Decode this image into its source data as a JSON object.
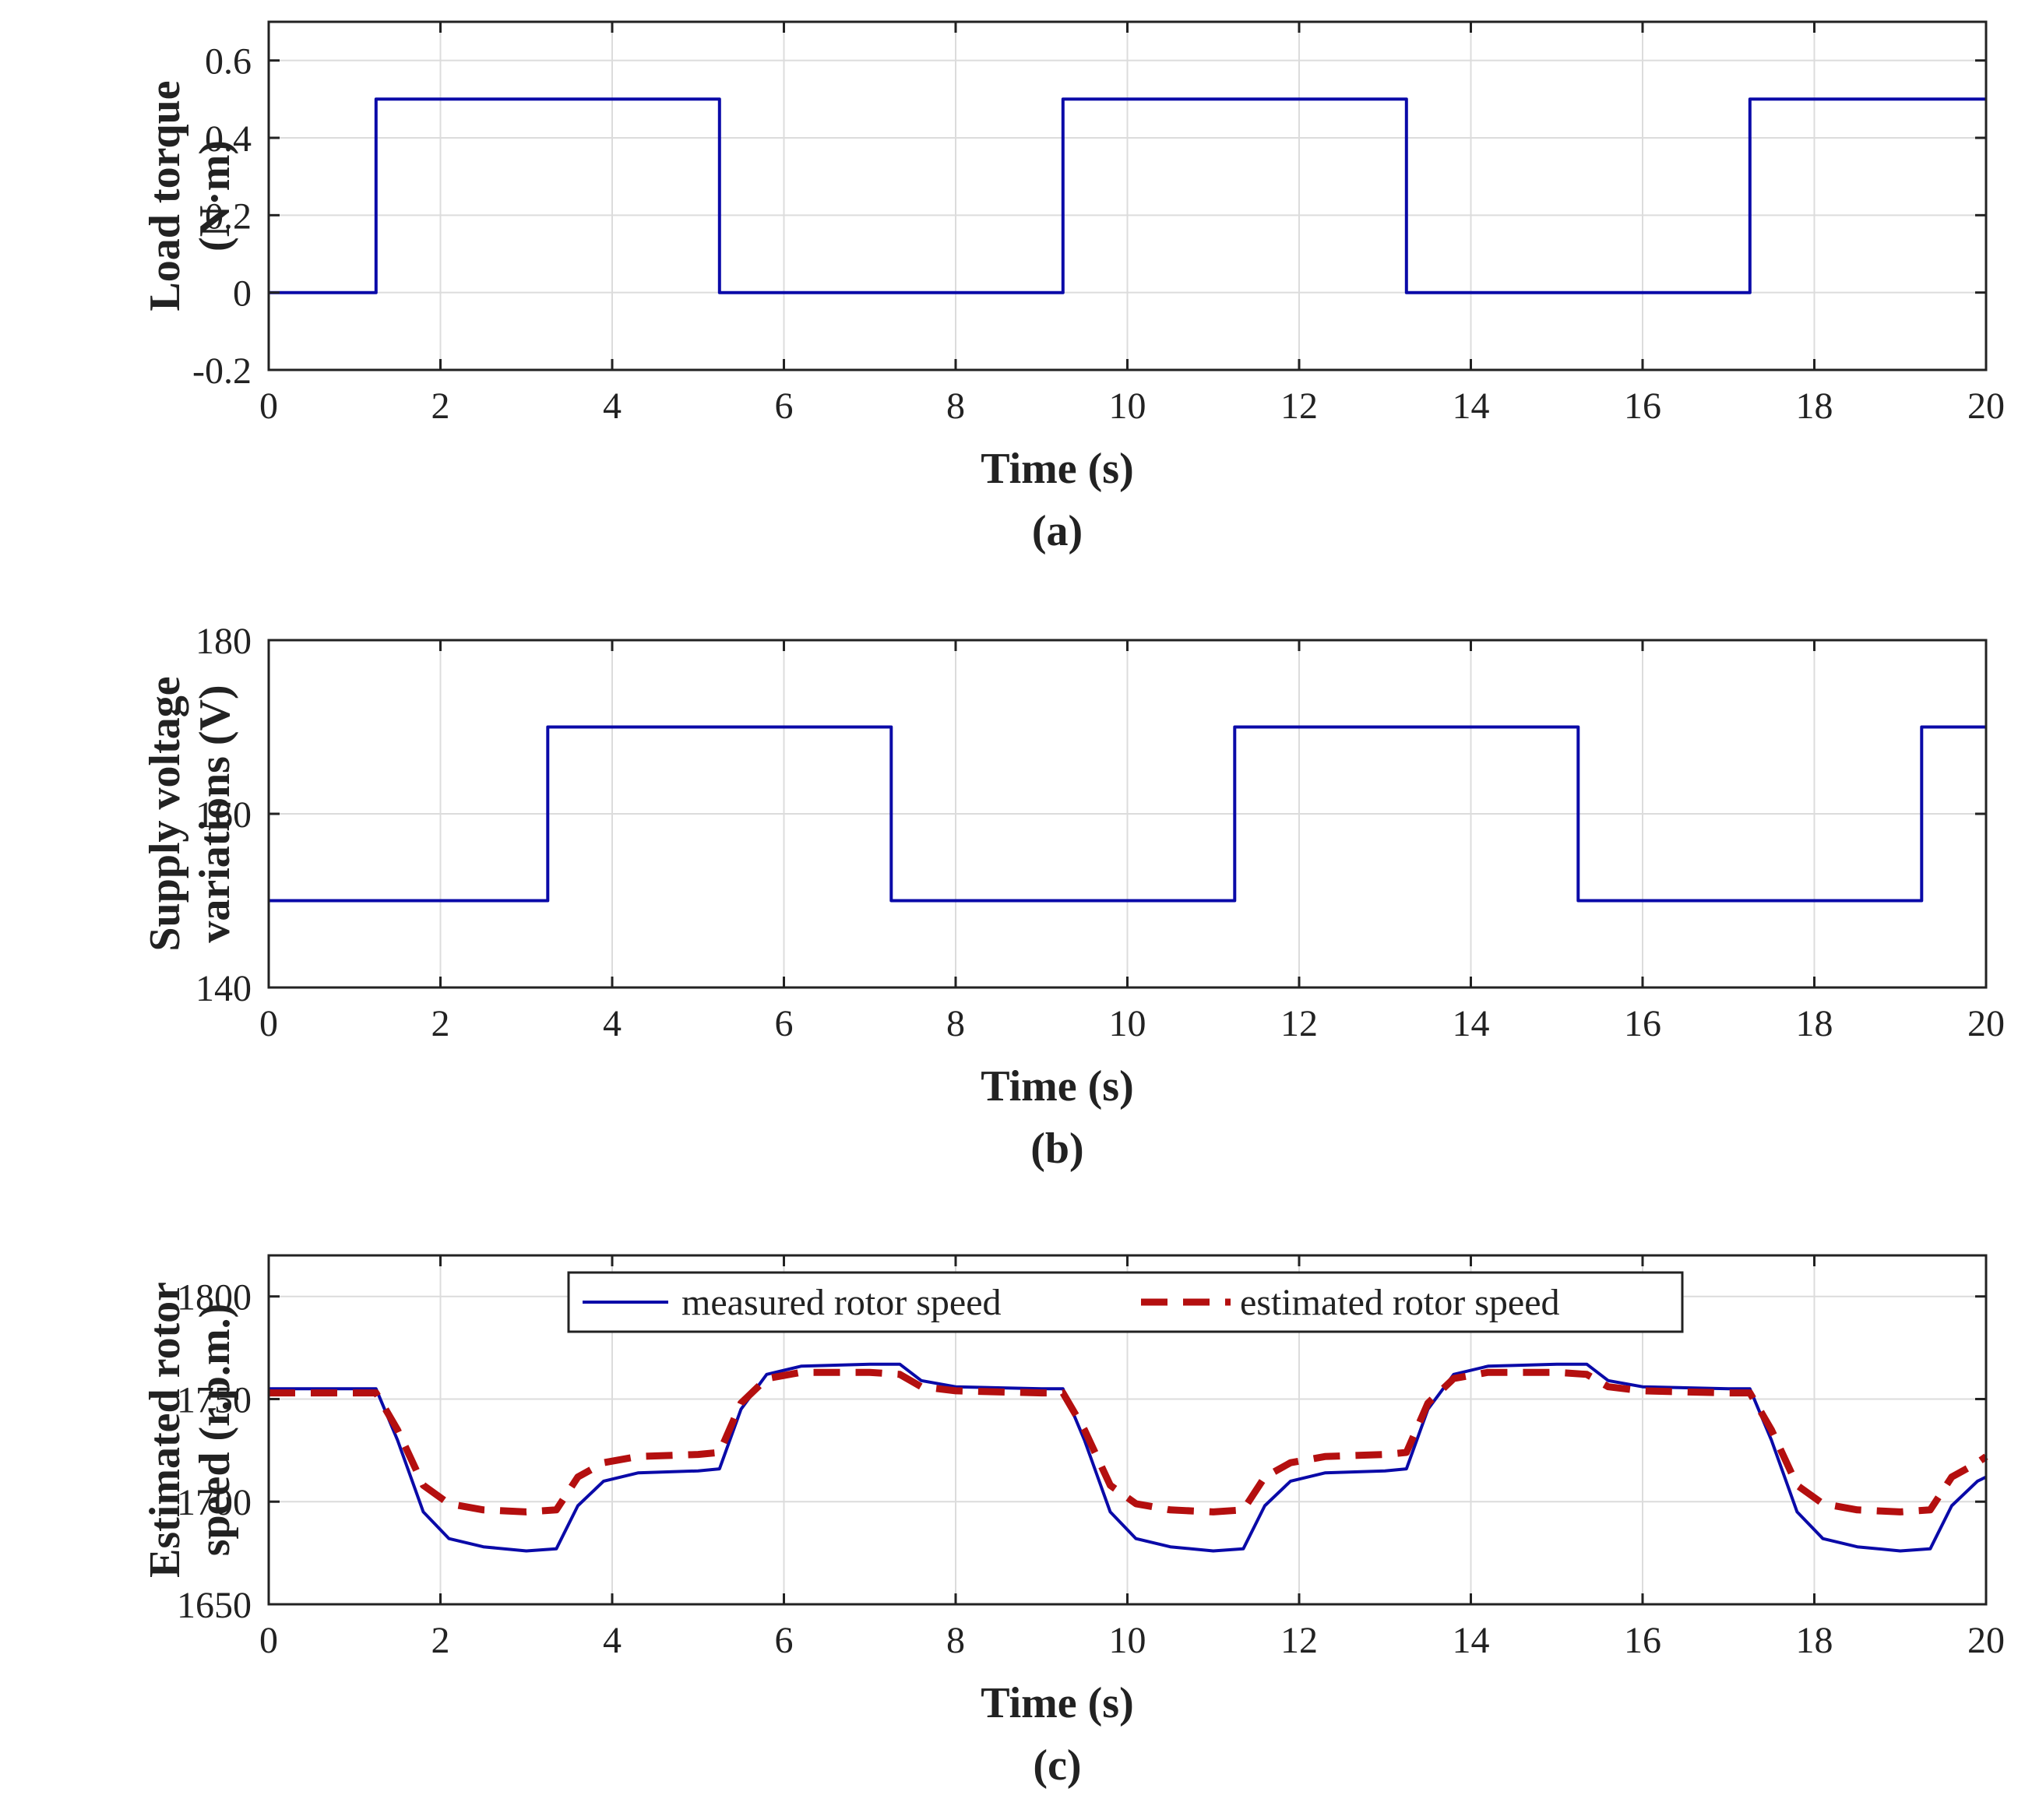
{
  "chart_data": [
    {
      "type": "line",
      "title": "",
      "caption": "(a)",
      "xlabel": "Time (s)",
      "ylabel": [
        "Load torque",
        "(N·m)"
      ],
      "xlim": [
        0,
        20
      ],
      "ylim": [
        -0.2,
        0.7
      ],
      "xticks": [
        0,
        2,
        4,
        6,
        8,
        10,
        12,
        14,
        16,
        18,
        20
      ],
      "yticks": [
        -0.2,
        0,
        0.2,
        0.4,
        0.6
      ],
      "ytick_labels": [
        "-0.2",
        "0",
        "0.2",
        "0.4",
        "0.6"
      ],
      "grid": true,
      "series": [
        {
          "name": "load torque",
          "color": "#0a0aa8",
          "style": "solid",
          "x": [
            0,
            1.25,
            1.25,
            5.25,
            5.25,
            9.25,
            9.25,
            13.25,
            13.25,
            17.25,
            17.25,
            20
          ],
          "y": [
            0,
            0,
            0.5,
            0.5,
            0,
            0,
            0.5,
            0.5,
            0,
            0,
            0.5,
            0.5
          ]
        }
      ]
    },
    {
      "type": "line",
      "title": "",
      "caption": "(b)",
      "xlabel": "Time (s)",
      "ylabel": [
        "Supply voltage",
        "variations (V)"
      ],
      "xlim": [
        0,
        20
      ],
      "ylim": [
        140,
        180
      ],
      "xticks": [
        0,
        2,
        4,
        6,
        8,
        10,
        12,
        14,
        16,
        18,
        20
      ],
      "yticks": [
        140,
        160,
        180
      ],
      "ytick_labels": [
        "140",
        "160",
        "180"
      ],
      "grid": true,
      "series": [
        {
          "name": "supply voltage",
          "color": "#0a0aa8",
          "style": "solid",
          "x": [
            0,
            3.25,
            3.25,
            7.25,
            7.25,
            11.25,
            11.25,
            15.25,
            15.25,
            19.25,
            19.25,
            20
          ],
          "y": [
            150,
            150,
            170,
            170,
            150,
            150,
            170,
            170,
            150,
            150,
            170,
            170
          ]
        }
      ]
    },
    {
      "type": "line",
      "title": "",
      "caption": "(c)",
      "xlabel": "Time (s)",
      "ylabel": [
        "Estimated rotor",
        "speed (r.p.m.)"
      ],
      "xlim": [
        0,
        20
      ],
      "ylim": [
        1650,
        1820
      ],
      "xticks": [
        0,
        2,
        4,
        6,
        8,
        10,
        12,
        14,
        16,
        18,
        20
      ],
      "yticks": [
        1650,
        1700,
        1750,
        1800
      ],
      "ytick_labels": [
        "1650",
        "1700",
        "1750",
        "1800"
      ],
      "grid": true,
      "legend": {
        "placement": "top-center",
        "entries": [
          "measured rotor speed",
          "estimated rotor speed"
        ]
      },
      "series": [
        {
          "name": "measured rotor speed",
          "color": "#0a0aa8",
          "style": "solid",
          "x": [
            0,
            1.25,
            1.5,
            1.8,
            2.1,
            2.5,
            3.0,
            3.35,
            3.6,
            3.9,
            4.3,
            5.0,
            5.25,
            5.5,
            5.8,
            6.2,
            7.0,
            7.35,
            7.6,
            8.0,
            9.0,
            9.25,
            9.5,
            9.8,
            10.1,
            10.5,
            11.0,
            11.35,
            11.6,
            11.9,
            12.3,
            13.0,
            13.25,
            13.5,
            13.8,
            14.2,
            15.0,
            15.35,
            15.6,
            16.0,
            17.0,
            17.25,
            17.5,
            17.8,
            18.1,
            18.5,
            19.0,
            19.35,
            19.6,
            19.9,
            20
          ],
          "y": [
            1755,
            1755,
            1730,
            1695,
            1682,
            1678,
            1676,
            1677,
            1698,
            1710,
            1714,
            1715,
            1716,
            1745,
            1762,
            1766,
            1767,
            1767,
            1759,
            1756,
            1755,
            1755,
            1730,
            1695,
            1682,
            1678,
            1676,
            1677,
            1698,
            1710,
            1714,
            1715,
            1716,
            1745,
            1762,
            1766,
            1767,
            1767,
            1759,
            1756,
            1755,
            1755,
            1730,
            1695,
            1682,
            1678,
            1676,
            1677,
            1698,
            1710,
            1712
          ]
        },
        {
          "name": "estimated rotor speed",
          "color": "#b40f0f",
          "style": "dashed",
          "x": [
            0,
            1.25,
            1.5,
            1.8,
            2.1,
            2.5,
            3.0,
            3.35,
            3.6,
            3.9,
            4.3,
            5.0,
            5.25,
            5.5,
            5.8,
            6.2,
            7.0,
            7.35,
            7.6,
            8.0,
            9.0,
            9.25,
            9.5,
            9.8,
            10.1,
            10.5,
            11.0,
            11.35,
            11.6,
            11.9,
            12.3,
            13.0,
            13.25,
            13.5,
            13.8,
            14.2,
            15.0,
            15.35,
            15.6,
            16.0,
            17.0,
            17.25,
            17.5,
            17.8,
            18.1,
            18.5,
            19.0,
            19.35,
            19.6,
            19.9,
            20
          ],
          "y": [
            1753,
            1753,
            1735,
            1708,
            1699,
            1696,
            1695,
            1696,
            1712,
            1719,
            1722,
            1723,
            1724,
            1748,
            1760,
            1763,
            1763,
            1762,
            1756,
            1754,
            1753,
            1753,
            1735,
            1708,
            1699,
            1696,
            1695,
            1696,
            1712,
            1719,
            1722,
            1723,
            1724,
            1748,
            1760,
            1763,
            1763,
            1762,
            1756,
            1754,
            1753,
            1753,
            1735,
            1708,
            1699,
            1696,
            1695,
            1696,
            1712,
            1719,
            1722
          ]
        }
      ]
    }
  ]
}
